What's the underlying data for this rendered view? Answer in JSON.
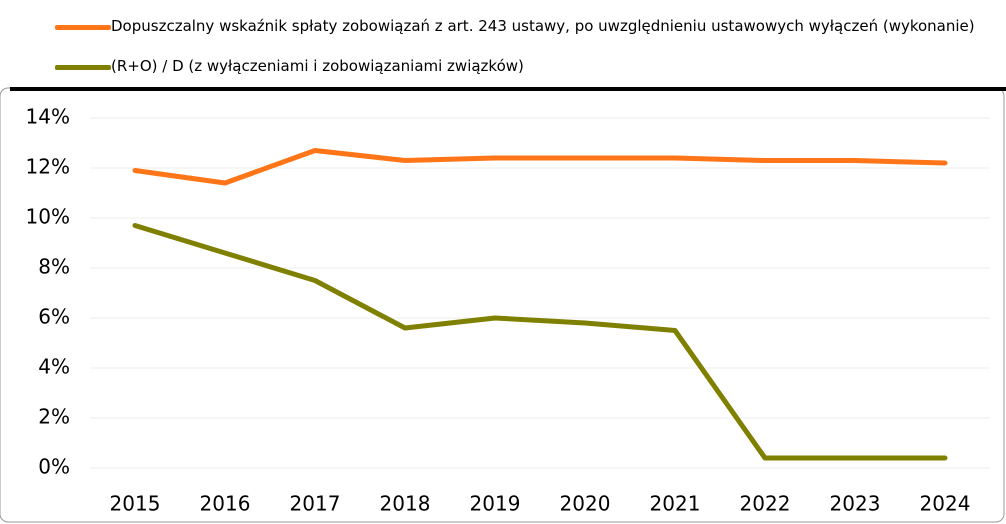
{
  "chart_data": {
    "type": "line",
    "categories": [
      "2015",
      "2016",
      "2017",
      "2018",
      "2019",
      "2020",
      "2021",
      "2022",
      "2023",
      "2024"
    ],
    "series": [
      {
        "name": "Dopuszczalny wskaźnik spłaty zobowiązań z art. 243 ustawy, po uwzględnieniu ustawowych wyłączeń (wykonanie)",
        "color": "#ff7518",
        "values": [
          11.9,
          11.4,
          12.7,
          12.3,
          12.4,
          12.4,
          12.4,
          12.3,
          12.3,
          12.2
        ]
      },
      {
        "name": "(R+O) / D (z wyłączeniami i zobowiązaniami związków)",
        "color": "#808000",
        "values": [
          9.7,
          8.6,
          7.5,
          5.6,
          6.0,
          5.8,
          5.5,
          0.4,
          0.4,
          0.4
        ]
      }
    ],
    "ylim": [
      0,
      14
    ],
    "yticks": [
      {
        "value": 0,
        "label": "0%"
      },
      {
        "value": 2,
        "label": "2%"
      },
      {
        "value": 4,
        "label": "4%"
      },
      {
        "value": 6,
        "label": "6%"
      },
      {
        "value": 8,
        "label": "8%"
      },
      {
        "value": 10,
        "label": "10%"
      },
      {
        "value": 12,
        "label": "12%"
      },
      {
        "value": 14,
        "label": "14%"
      }
    ],
    "grid": true
  }
}
